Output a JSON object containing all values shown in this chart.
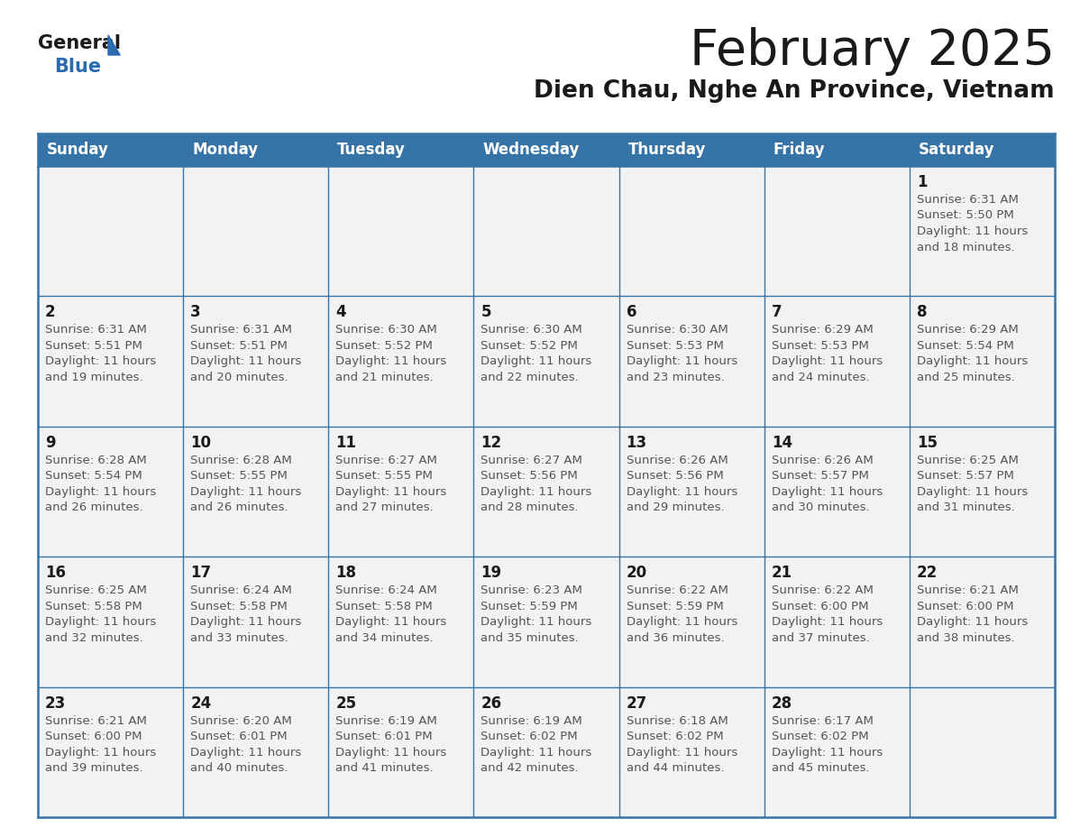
{
  "title": "February 2025",
  "subtitle": "Dien Chau, Nghe An Province, Vietnam",
  "days_of_week": [
    "Sunday",
    "Monday",
    "Tuesday",
    "Wednesday",
    "Thursday",
    "Friday",
    "Saturday"
  ],
  "header_bg": "#3674a8",
  "header_text": "#ffffff",
  "cell_bg": "#f2f2f2",
  "border_color": "#3674a8",
  "title_color": "#1a1a1a",
  "subtitle_color": "#1a1a1a",
  "day_num_color": "#1a1a1a",
  "info_color": "#555555",
  "calendar_data": [
    [
      null,
      null,
      null,
      null,
      null,
      null,
      {
        "day": 1,
        "sunrise": "6:31 AM",
        "sunset": "5:50 PM",
        "daylight_h": "11 hours",
        "daylight_m": "and 18 minutes."
      }
    ],
    [
      {
        "day": 2,
        "sunrise": "6:31 AM",
        "sunset": "5:51 PM",
        "daylight_h": "11 hours",
        "daylight_m": "and 19 minutes."
      },
      {
        "day": 3,
        "sunrise": "6:31 AM",
        "sunset": "5:51 PM",
        "daylight_h": "11 hours",
        "daylight_m": "and 20 minutes."
      },
      {
        "day": 4,
        "sunrise": "6:30 AM",
        "sunset": "5:52 PM",
        "daylight_h": "11 hours",
        "daylight_m": "and 21 minutes."
      },
      {
        "day": 5,
        "sunrise": "6:30 AM",
        "sunset": "5:52 PM",
        "daylight_h": "11 hours",
        "daylight_m": "and 22 minutes."
      },
      {
        "day": 6,
        "sunrise": "6:30 AM",
        "sunset": "5:53 PM",
        "daylight_h": "11 hours",
        "daylight_m": "and 23 minutes."
      },
      {
        "day": 7,
        "sunrise": "6:29 AM",
        "sunset": "5:53 PM",
        "daylight_h": "11 hours",
        "daylight_m": "and 24 minutes."
      },
      {
        "day": 8,
        "sunrise": "6:29 AM",
        "sunset": "5:54 PM",
        "daylight_h": "11 hours",
        "daylight_m": "and 25 minutes."
      }
    ],
    [
      {
        "day": 9,
        "sunrise": "6:28 AM",
        "sunset": "5:54 PM",
        "daylight_h": "11 hours",
        "daylight_m": "and 26 minutes."
      },
      {
        "day": 10,
        "sunrise": "6:28 AM",
        "sunset": "5:55 PM",
        "daylight_h": "11 hours",
        "daylight_m": "and 26 minutes."
      },
      {
        "day": 11,
        "sunrise": "6:27 AM",
        "sunset": "5:55 PM",
        "daylight_h": "11 hours",
        "daylight_m": "and 27 minutes."
      },
      {
        "day": 12,
        "sunrise": "6:27 AM",
        "sunset": "5:56 PM",
        "daylight_h": "11 hours",
        "daylight_m": "and 28 minutes."
      },
      {
        "day": 13,
        "sunrise": "6:26 AM",
        "sunset": "5:56 PM",
        "daylight_h": "11 hours",
        "daylight_m": "and 29 minutes."
      },
      {
        "day": 14,
        "sunrise": "6:26 AM",
        "sunset": "5:57 PM",
        "daylight_h": "11 hours",
        "daylight_m": "and 30 minutes."
      },
      {
        "day": 15,
        "sunrise": "6:25 AM",
        "sunset": "5:57 PM",
        "daylight_h": "11 hours",
        "daylight_m": "and 31 minutes."
      }
    ],
    [
      {
        "day": 16,
        "sunrise": "6:25 AM",
        "sunset": "5:58 PM",
        "daylight_h": "11 hours",
        "daylight_m": "and 32 minutes."
      },
      {
        "day": 17,
        "sunrise": "6:24 AM",
        "sunset": "5:58 PM",
        "daylight_h": "11 hours",
        "daylight_m": "and 33 minutes."
      },
      {
        "day": 18,
        "sunrise": "6:24 AM",
        "sunset": "5:58 PM",
        "daylight_h": "11 hours",
        "daylight_m": "and 34 minutes."
      },
      {
        "day": 19,
        "sunrise": "6:23 AM",
        "sunset": "5:59 PM",
        "daylight_h": "11 hours",
        "daylight_m": "and 35 minutes."
      },
      {
        "day": 20,
        "sunrise": "6:22 AM",
        "sunset": "5:59 PM",
        "daylight_h": "11 hours",
        "daylight_m": "and 36 minutes."
      },
      {
        "day": 21,
        "sunrise": "6:22 AM",
        "sunset": "6:00 PM",
        "daylight_h": "11 hours",
        "daylight_m": "and 37 minutes."
      },
      {
        "day": 22,
        "sunrise": "6:21 AM",
        "sunset": "6:00 PM",
        "daylight_h": "11 hours",
        "daylight_m": "and 38 minutes."
      }
    ],
    [
      {
        "day": 23,
        "sunrise": "6:21 AM",
        "sunset": "6:00 PM",
        "daylight_h": "11 hours",
        "daylight_m": "and 39 minutes."
      },
      {
        "day": 24,
        "sunrise": "6:20 AM",
        "sunset": "6:01 PM",
        "daylight_h": "11 hours",
        "daylight_m": "and 40 minutes."
      },
      {
        "day": 25,
        "sunrise": "6:19 AM",
        "sunset": "6:01 PM",
        "daylight_h": "11 hours",
        "daylight_m": "and 41 minutes."
      },
      {
        "day": 26,
        "sunrise": "6:19 AM",
        "sunset": "6:02 PM",
        "daylight_h": "11 hours",
        "daylight_m": "and 42 minutes."
      },
      {
        "day": 27,
        "sunrise": "6:18 AM",
        "sunset": "6:02 PM",
        "daylight_h": "11 hours",
        "daylight_m": "and 44 minutes."
      },
      {
        "day": 28,
        "sunrise": "6:17 AM",
        "sunset": "6:02 PM",
        "daylight_h": "11 hours",
        "daylight_m": "and 45 minutes."
      },
      null
    ]
  ]
}
